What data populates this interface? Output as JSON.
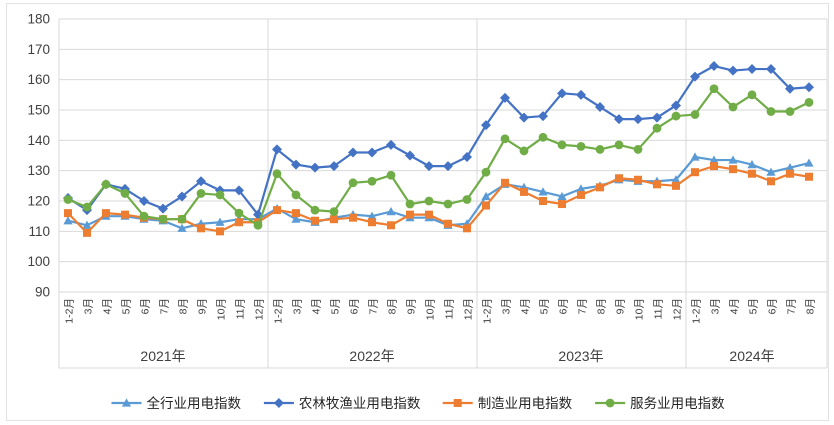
{
  "chart_data": {
    "type": "line",
    "title": "",
    "legend_position": "bottom",
    "grid": true,
    "colors": {
      "grid": "#d9d9d9",
      "axis_text": "#404040",
      "separator": "#d9d9d9"
    },
    "y_axis": {
      "min": 90,
      "max": 180,
      "step": 10,
      "ticks": [
        180,
        170,
        160,
        150,
        140,
        130,
        120,
        110,
        100,
        90
      ]
    },
    "x_axis": {
      "years": [
        {
          "label": "2021年",
          "months": [
            "1-2月",
            "3月",
            "4月",
            "5月",
            "6月",
            "7月",
            "8月",
            "9月",
            "10月",
            "11月",
            "12月"
          ]
        },
        {
          "label": "2022年",
          "months": [
            "1-2月",
            "3月",
            "4月",
            "5月",
            "6月",
            "7月",
            "8月",
            "9月",
            "10月",
            "11月",
            "12月"
          ]
        },
        {
          "label": "2023年",
          "months": [
            "1-2月",
            "3月",
            "4月",
            "5月",
            "6月",
            "7月",
            "8月",
            "9月",
            "10月",
            "11月",
            "12月"
          ]
        },
        {
          "label": "2024年",
          "months": [
            "1-2月",
            "3月",
            "4月",
            "5月",
            "6月",
            "7月",
            "8月"
          ]
        }
      ]
    },
    "series": [
      {
        "name": "全行业用电指数",
        "marker": "triangle",
        "color": "#5b9bd5",
        "values": [
          113.5,
          112,
          115,
          115,
          114,
          113.5,
          111,
          112.5,
          113,
          114,
          114,
          117.5,
          114,
          113,
          114.5,
          115.5,
          115,
          116.5,
          114.5,
          114.5,
          112,
          112.5,
          121.5,
          125.5,
          124.5,
          123,
          121.5,
          124,
          125,
          127,
          126.5,
          126.5,
          127,
          134.5,
          133.5,
          133.5,
          132,
          129.5,
          131,
          132.5
        ]
      },
      {
        "name": "农林牧渔业用电指数",
        "marker": "diamond",
        "color": "#4472c4",
        "values": [
          121,
          117,
          125.5,
          124,
          120,
          117.5,
          121.5,
          126.5,
          123.5,
          123.5,
          115.5,
          137,
          132,
          131,
          131.5,
          136,
          136,
          138.5,
          135,
          131.5,
          131.5,
          134.5,
          145,
          154,
          147.5,
          148,
          155.5,
          155,
          151,
          147,
          147,
          147.5,
          151.5,
          161,
          164.5,
          163,
          163.5,
          163.5,
          157,
          157.5
        ]
      },
      {
        "name": "制造业用电指数",
        "marker": "square",
        "color": "#ed7d31",
        "values": [
          116,
          109.5,
          116,
          115.5,
          114.5,
          114,
          114,
          111,
          110,
          113,
          113,
          117,
          116,
          113.5,
          114,
          114.5,
          113,
          112,
          115.5,
          115.5,
          112.5,
          111,
          118.5,
          126,
          123,
          120,
          119,
          122,
          124.5,
          127.5,
          127,
          125.5,
          125,
          129.5,
          131.5,
          130.5,
          129,
          126.5,
          129,
          128
        ]
      },
      {
        "name": "服务业用电指数",
        "marker": "circle",
        "color": "#70ad47",
        "values": [
          120.5,
          118,
          125.5,
          122.5,
          115,
          114,
          114,
          122.5,
          122,
          116,
          112,
          129,
          122,
          117,
          116.5,
          126,
          126.5,
          128.5,
          119,
          120,
          119,
          120.5,
          129.5,
          140.5,
          136.5,
          141,
          138.5,
          138,
          137,
          138.5,
          137,
          144,
          148,
          148.5,
          157,
          151,
          155,
          149.5,
          149.5,
          152.5
        ]
      }
    ]
  }
}
